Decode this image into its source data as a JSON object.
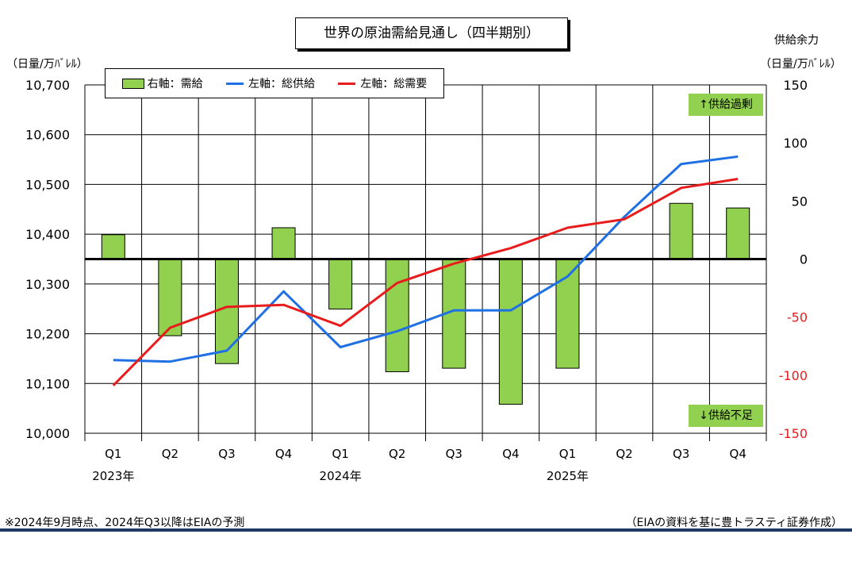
{
  "title": "世界の原油需給見通し（四半期別）",
  "left_axis_unit": "（日量/万ﾊﾞﾚﾙ）",
  "right_axis_title": "供給余力",
  "right_axis_unit": "（日量/万ﾊﾞﾚﾙ）",
  "legend": {
    "bar": "右軸：需給",
    "supply": "左軸：総供給",
    "demand": "左軸：総需要"
  },
  "badges": {
    "surplus": "↑供給過剰",
    "shortage": "↓供給不足"
  },
  "footnote_left": "※2024年9月時点、2024年Q3以降はEIAの予測",
  "footnote_right": "（EIAの資料を基に豊トラスティ証券作成）",
  "chart_data": {
    "type": "bar+line",
    "categories": [
      "Q1",
      "Q2",
      "Q3",
      "Q4",
      "Q1",
      "Q2",
      "Q3",
      "Q4",
      "Q1",
      "Q2",
      "Q3",
      "Q4"
    ],
    "year_labels": [
      {
        "index": 0,
        "label": "2023年"
      },
      {
        "index": 4,
        "label": "2024年"
      },
      {
        "index": 8,
        "label": "2025年"
      }
    ],
    "left_axis": {
      "min": 10000,
      "max": 10700,
      "ticks": [
        "10,000",
        "10,100",
        "10,200",
        "10,300",
        "10,400",
        "10,500",
        "10,600",
        "10,700"
      ]
    },
    "right_axis": {
      "min": -150,
      "max": 150,
      "ticks": [
        "-150",
        "-100",
        "-50",
        "0",
        "50",
        "100",
        "150"
      ]
    },
    "series": [
      {
        "name": "右軸：需給",
        "type": "bar",
        "axis": "right",
        "color": "#92d050",
        "values": [
          21,
          -66,
          -90,
          27,
          -43,
          -97,
          -94,
          -125,
          -94,
          0,
          48,
          44
        ]
      },
      {
        "name": "左軸：総供給",
        "type": "line",
        "axis": "left",
        "color": "#1f6fe5",
        "values": [
          10147,
          10144,
          10166,
          10285,
          10173,
          10205,
          10247,
          10247,
          10315,
          10435,
          10541,
          10556
        ]
      },
      {
        "name": "左軸：総需要",
        "type": "line",
        "axis": "left",
        "color": "#e81c1c",
        "values": [
          10096,
          10212,
          10254,
          10258,
          10216,
          10302,
          10341,
          10372,
          10413,
          10430,
          10493,
          10511
        ]
      }
    ],
    "grid": true
  }
}
